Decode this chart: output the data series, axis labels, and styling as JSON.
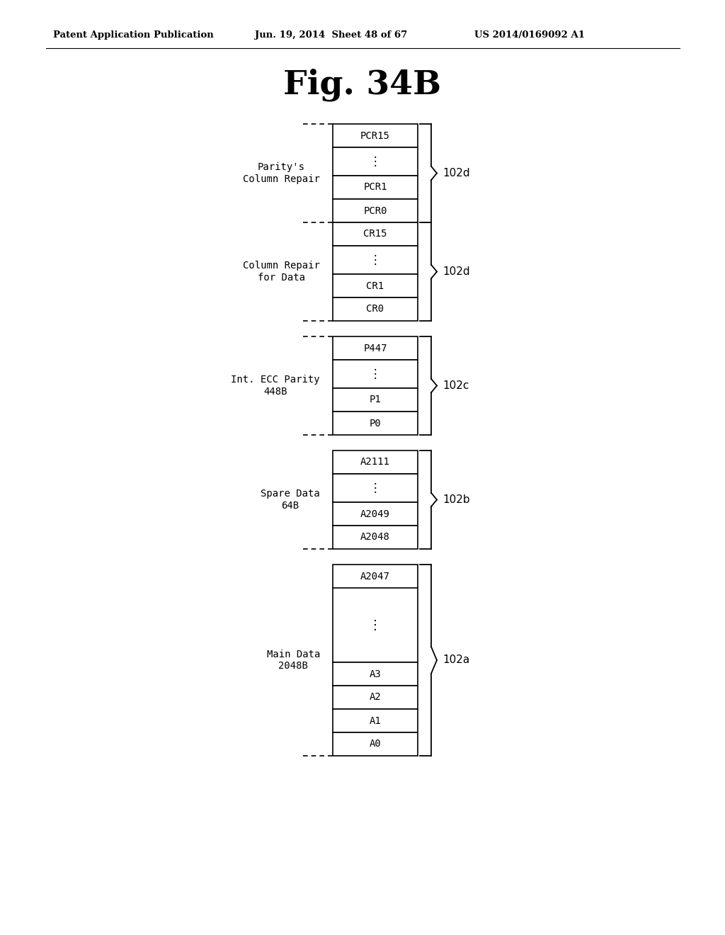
{
  "title": "Fig. 34B",
  "header_left": "Patent Application Publication",
  "header_mid": "Jun. 19, 2014  Sheet 48 of 67",
  "header_right": "US 2014/0169092 A1",
  "bg_color": "#ffffff"
}
